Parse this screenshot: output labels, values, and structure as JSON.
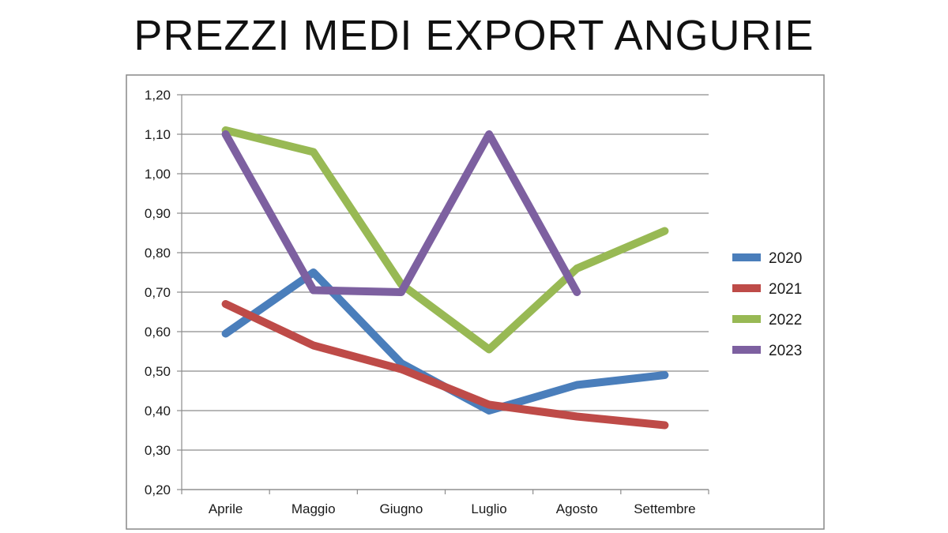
{
  "chart_data": {
    "type": "line",
    "title": "PREZZI MEDI EXPORT ANGURIE",
    "xlabel": "",
    "ylabel": "",
    "categories": [
      "Aprile",
      "Maggio",
      "Giugno",
      "Luglio",
      "Agosto",
      "Settembre"
    ],
    "ylim": [
      0.2,
      1.2
    ],
    "yticks": [
      "0,20",
      "0,30",
      "0,40",
      "0,50",
      "0,60",
      "0,70",
      "0,80",
      "0,90",
      "1,00",
      "1,10",
      "1,20"
    ],
    "grid": true,
    "legend_position": "right",
    "series": [
      {
        "name": "2020",
        "color": "#4a7ebb",
        "values": [
          0.595,
          0.75,
          0.52,
          0.4,
          0.465,
          0.49
        ]
      },
      {
        "name": "2021",
        "color": "#be4b48",
        "values": [
          0.67,
          0.565,
          0.505,
          0.415,
          0.385,
          0.363
        ]
      },
      {
        "name": "2022",
        "color": "#98b954",
        "values": [
          1.11,
          1.055,
          0.72,
          0.555,
          0.76,
          0.855
        ]
      },
      {
        "name": "2023",
        "color": "#7d60a0",
        "values": [
          1.1,
          0.705,
          0.7,
          1.1,
          0.7,
          null
        ]
      }
    ]
  }
}
